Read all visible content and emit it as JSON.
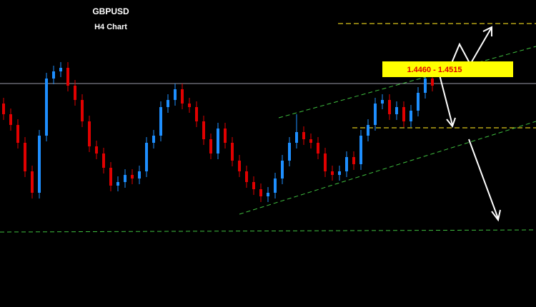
{
  "chart_data": {
    "type": "candlestick",
    "title": "GBPUSD",
    "subtitle": "H4 Chart",
    "annotation": "1.4460 - 1.4515",
    "up_color": "#1e8fff",
    "down_color": "#e10000",
    "open": [
      1.441,
      1.438,
      1.435,
      1.43,
      1.422,
      1.416,
      1.432,
      1.448,
      1.45,
      1.451,
      1.446,
      1.442,
      1.436,
      1.429,
      1.427,
      1.423,
      1.418,
      1.419,
      1.421,
      1.42,
      1.422,
      1.43,
      1.432,
      1.44,
      1.442,
      1.445,
      1.441,
      1.44,
      1.436,
      1.431,
      1.427,
      1.434,
      1.43,
      1.425,
      1.422,
      1.419,
      1.417,
      1.415,
      1.416,
      1.42,
      1.425,
      1.43,
      1.433,
      1.431,
      1.43,
      1.427,
      1.422,
      1.421,
      1.422,
      1.426,
      1.424,
      1.432,
      1.435,
      1.441,
      1.442,
      1.438,
      1.44,
      1.436,
      1.439,
      1.444,
      1.448
    ],
    "high": [
      1.4426,
      1.4396,
      1.4366,
      1.4316,
      1.4236,
      1.4336,
      1.4496,
      1.4516,
      1.4526,
      1.4526,
      1.4476,
      1.4436,
      1.4376,
      1.4306,
      1.4286,
      1.4246,
      1.4206,
      1.4226,
      1.4226,
      1.4236,
      1.4316,
      1.4336,
      1.4416,
      1.4436,
      1.4466,
      1.4466,
      1.4426,
      1.4416,
      1.4376,
      1.4326,
      1.4356,
      1.4356,
      1.4316,
      1.4266,
      1.4236,
      1.4206,
      1.4186,
      1.4176,
      1.4216,
      1.4266,
      1.4316,
      1.438,
      1.4346,
      1.4326,
      1.4316,
      1.4286,
      1.4236,
      1.4236,
      1.4276,
      1.4276,
      1.4336,
      1.4366,
      1.4426,
      1.4436,
      1.4436,
      1.4416,
      1.4416,
      1.4406,
      1.4456,
      1.4496,
      1.4496
    ],
    "low": [
      1.4364,
      1.4334,
      1.4284,
      1.4204,
      1.4144,
      1.4144,
      1.4304,
      1.4464,
      1.4484,
      1.4444,
      1.4404,
      1.4344,
      1.4274,
      1.4254,
      1.4214,
      1.4164,
      1.4164,
      1.4174,
      1.4184,
      1.4184,
      1.4204,
      1.4284,
      1.4304,
      1.4384,
      1.4404,
      1.4394,
      1.4384,
      1.4344,
      1.4294,
      1.4254,
      1.4254,
      1.4284,
      1.4234,
      1.4204,
      1.4174,
      1.4154,
      1.4134,
      1.4134,
      1.4144,
      1.4184,
      1.4234,
      1.4284,
      1.4294,
      1.4284,
      1.4254,
      1.4204,
      1.4194,
      1.4194,
      1.4204,
      1.4224,
      1.4224,
      1.4304,
      1.4334,
      1.4394,
      1.4364,
      1.4364,
      1.4344,
      1.4344,
      1.4374,
      1.4424,
      1.4444
    ],
    "close": [
      1.438,
      1.435,
      1.43,
      1.422,
      1.416,
      1.432,
      1.448,
      1.45,
      1.451,
      1.446,
      1.442,
      1.436,
      1.429,
      1.427,
      1.423,
      1.418,
      1.419,
      1.421,
      1.42,
      1.422,
      1.43,
      1.432,
      1.44,
      1.442,
      1.445,
      1.441,
      1.44,
      1.436,
      1.431,
      1.427,
      1.434,
      1.43,
      1.425,
      1.422,
      1.419,
      1.417,
      1.415,
      1.416,
      1.42,
      1.425,
      1.43,
      1.433,
      1.431,
      1.43,
      1.427,
      1.422,
      1.421,
      1.422,
      1.426,
      1.424,
      1.432,
      1.435,
      1.441,
      1.442,
      1.438,
      1.44,
      1.436,
      1.439,
      1.444,
      1.448,
      1.446
    ]
  }
}
